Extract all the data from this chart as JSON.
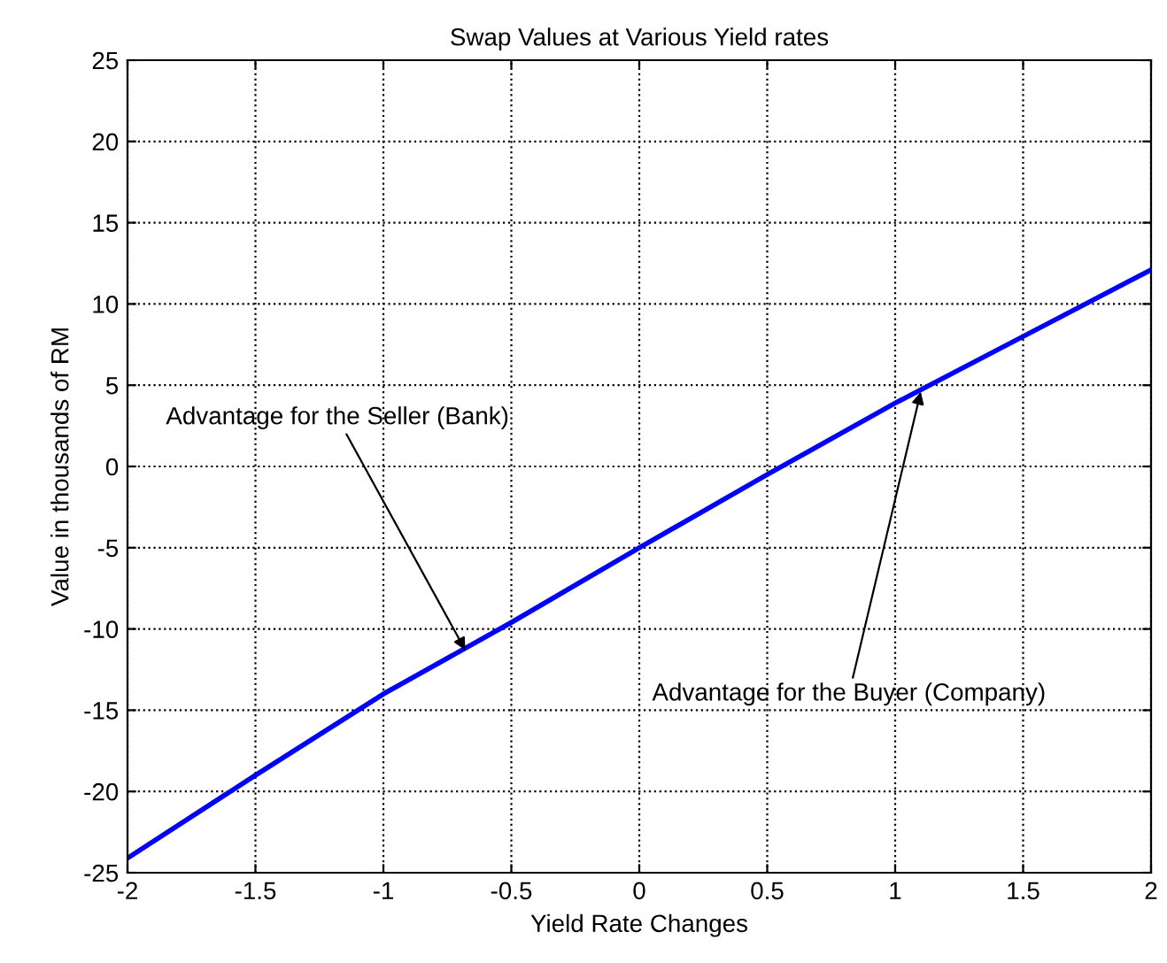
{
  "chart_data": {
    "type": "line",
    "title": "Swap Values at Various Yield rates",
    "xlabel": "Yield Rate Changes",
    "ylabel": "Value in thousands of RM",
    "x": [
      -2,
      -1.5,
      -1,
      -0.5,
      0,
      0.5,
      1,
      1.5,
      2
    ],
    "series": [
      {
        "color": "#0000ff",
        "values": [
          -24.1,
          -19.0,
          -14.0,
          -9.6,
          -5.0,
          -0.5,
          3.9,
          8.0,
          12.1
        ]
      }
    ],
    "annotations": [
      {
        "text": "Advantage for the Seller (Bank)",
        "x": -0.68,
        "y": -11.3
      },
      {
        "text": "Advantage for the Buyer (Company)",
        "x": 1.1,
        "y": 4.6
      }
    ],
    "xlim": [
      -2,
      2
    ],
    "ylim": [
      -25,
      25
    ],
    "xticks": [
      -2,
      -1.5,
      -1,
      -0.5,
      0,
      0.5,
      1,
      1.5,
      2
    ],
    "yticks": [
      -25,
      -20,
      -15,
      -10,
      -5,
      0,
      5,
      10,
      15,
      20,
      25
    ],
    "grid": true,
    "marker": "none",
    "line_style": "solid"
  }
}
